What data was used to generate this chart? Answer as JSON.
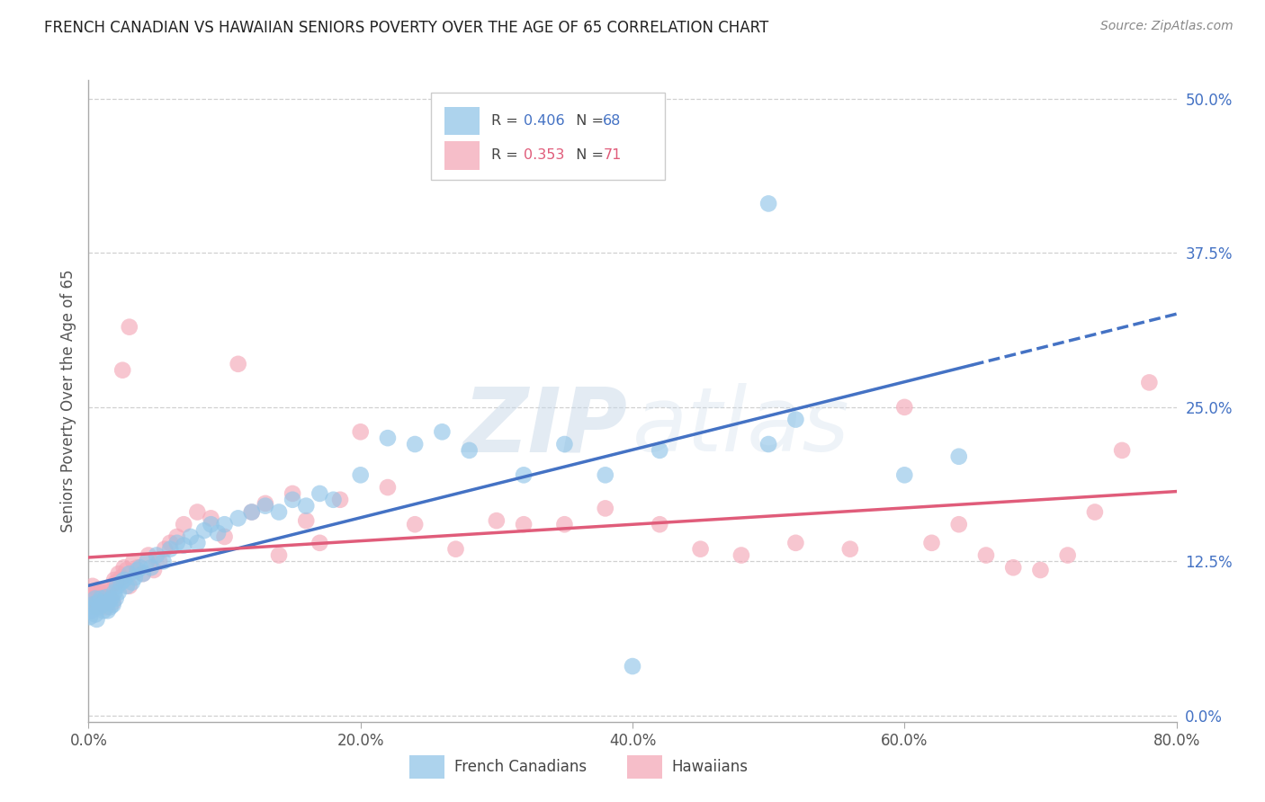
{
  "title": "FRENCH CANADIAN VS HAWAIIAN SENIORS POVERTY OVER THE AGE OF 65 CORRELATION CHART",
  "source": "Source: ZipAtlas.com",
  "ylabel": "Seniors Poverty Over the Age of 65",
  "r1": 0.406,
  "n1": 68,
  "r2": 0.353,
  "n2": 71,
  "color1": "#92c5e8",
  "color2": "#f4a8b8",
  "line_color1": "#4472c4",
  "line_color2": "#e05c7a",
  "bg_color": "#ffffff",
  "grid_color": "#d0d0d0",
  "title_color": "#222222",
  "axis_label_color": "#555555",
  "right_tick_color": "#4472c4",
  "legend1_label": "French Canadians",
  "legend2_label": "Hawaiians",
  "xlim": [
    0.0,
    0.8
  ],
  "ylim": [
    -0.005,
    0.515
  ],
  "xticks": [
    0.0,
    0.2,
    0.4,
    0.6,
    0.8
  ],
  "xticklabels": [
    "0.0%",
    "20.0%",
    "40.0%",
    "60.0%",
    "80.0%"
  ],
  "yticks_right": [
    0.0,
    0.125,
    0.25,
    0.375,
    0.5
  ],
  "yticklabels_right": [
    "0.0%",
    "12.5%",
    "25.0%",
    "37.5%",
    "50.0%"
  ],
  "french_x": [
    0.001,
    0.002,
    0.003,
    0.004,
    0.005,
    0.005,
    0.006,
    0.007,
    0.008,
    0.009,
    0.01,
    0.011,
    0.012,
    0.013,
    0.014,
    0.015,
    0.016,
    0.017,
    0.018,
    0.019,
    0.02,
    0.021,
    0.022,
    0.024,
    0.026,
    0.028,
    0.03,
    0.032,
    0.034,
    0.036,
    0.038,
    0.04,
    0.043,
    0.046,
    0.05,
    0.055,
    0.06,
    0.065,
    0.07,
    0.075,
    0.08,
    0.085,
    0.09,
    0.095,
    0.1,
    0.11,
    0.12,
    0.13,
    0.14,
    0.15,
    0.16,
    0.17,
    0.18,
    0.2,
    0.22,
    0.24,
    0.26,
    0.28,
    0.32,
    0.35,
    0.38,
    0.42,
    0.5,
    0.52,
    0.6,
    0.64,
    0.5,
    0.4
  ],
  "french_y": [
    0.08,
    0.085,
    0.09,
    0.088,
    0.082,
    0.095,
    0.078,
    0.092,
    0.088,
    0.095,
    0.09,
    0.085,
    0.092,
    0.096,
    0.085,
    0.092,
    0.088,
    0.095,
    0.09,
    0.1,
    0.095,
    0.105,
    0.1,
    0.108,
    0.11,
    0.105,
    0.115,
    0.108,
    0.112,
    0.118,
    0.12,
    0.115,
    0.125,
    0.12,
    0.13,
    0.125,
    0.135,
    0.14,
    0.138,
    0.145,
    0.14,
    0.15,
    0.155,
    0.148,
    0.155,
    0.16,
    0.165,
    0.17,
    0.165,
    0.175,
    0.17,
    0.18,
    0.175,
    0.195,
    0.225,
    0.22,
    0.23,
    0.215,
    0.195,
    0.22,
    0.195,
    0.215,
    0.22,
    0.24,
    0.195,
    0.21,
    0.415,
    0.04
  ],
  "hawaiian_x": [
    0.001,
    0.002,
    0.003,
    0.004,
    0.005,
    0.006,
    0.007,
    0.008,
    0.009,
    0.01,
    0.011,
    0.012,
    0.013,
    0.014,
    0.015,
    0.016,
    0.017,
    0.018,
    0.019,
    0.02,
    0.022,
    0.024,
    0.026,
    0.028,
    0.03,
    0.033,
    0.036,
    0.04,
    0.044,
    0.048,
    0.052,
    0.056,
    0.06,
    0.065,
    0.07,
    0.08,
    0.09,
    0.1,
    0.11,
    0.12,
    0.13,
    0.14,
    0.15,
    0.16,
    0.17,
    0.185,
    0.2,
    0.22,
    0.24,
    0.27,
    0.3,
    0.32,
    0.35,
    0.38,
    0.42,
    0.45,
    0.48,
    0.52,
    0.56,
    0.6,
    0.62,
    0.64,
    0.66,
    0.68,
    0.7,
    0.72,
    0.74,
    0.76,
    0.78,
    0.03,
    0.025
  ],
  "hawaiian_y": [
    0.1,
    0.095,
    0.105,
    0.092,
    0.098,
    0.088,
    0.102,
    0.095,
    0.1,
    0.092,
    0.098,
    0.102,
    0.088,
    0.095,
    0.1,
    0.095,
    0.105,
    0.092,
    0.11,
    0.108,
    0.115,
    0.112,
    0.12,
    0.118,
    0.105,
    0.125,
    0.12,
    0.115,
    0.13,
    0.118,
    0.125,
    0.135,
    0.14,
    0.145,
    0.155,
    0.165,
    0.16,
    0.145,
    0.285,
    0.165,
    0.172,
    0.13,
    0.18,
    0.158,
    0.14,
    0.175,
    0.23,
    0.185,
    0.155,
    0.135,
    0.158,
    0.155,
    0.155,
    0.168,
    0.155,
    0.135,
    0.13,
    0.14,
    0.135,
    0.25,
    0.14,
    0.155,
    0.13,
    0.12,
    0.118,
    0.13,
    0.165,
    0.215,
    0.27,
    0.315,
    0.28
  ]
}
